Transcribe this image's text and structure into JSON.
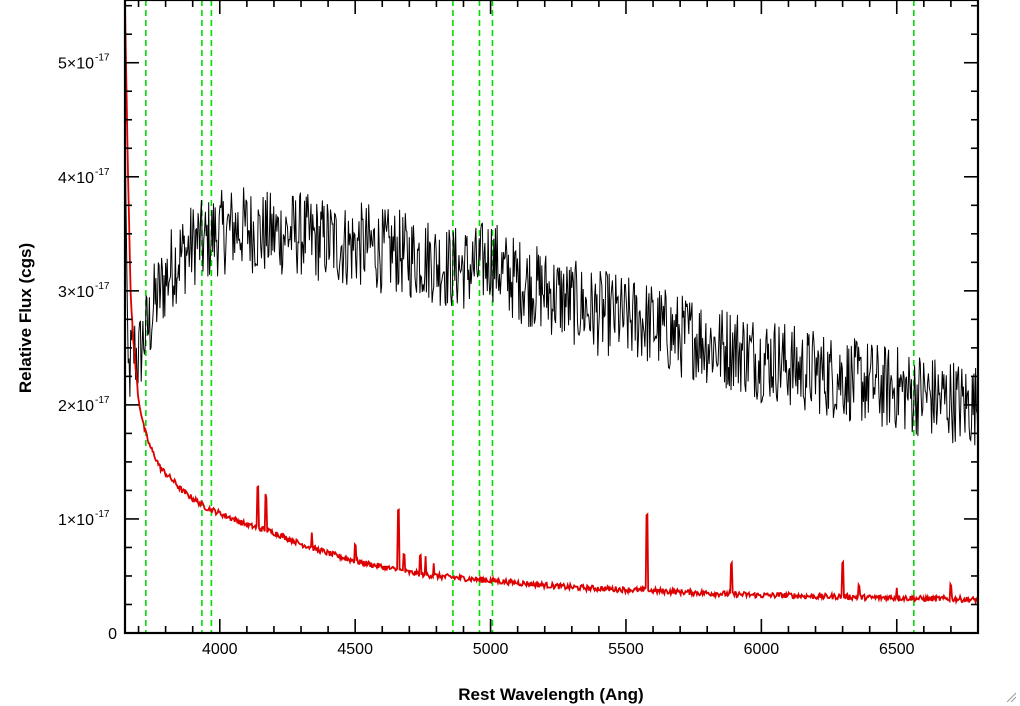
{
  "chart_data": {
    "type": "line",
    "title": "",
    "xlabel": "Rest Wavelength (Ang)",
    "ylabel": "Relative Flux (cgs)",
    "xlim": [
      3650,
      6800
    ],
    "ylim": [
      0,
      5.55e-17
    ],
    "x_ticks": [
      {
        "value": 4000,
        "label": "4000"
      },
      {
        "value": 4500,
        "label": "4500"
      },
      {
        "value": 5000,
        "label": "5000"
      },
      {
        "value": 5500,
        "label": "5500"
      },
      {
        "value": 6000,
        "label": "6000"
      },
      {
        "value": 6500,
        "label": "6500"
      }
    ],
    "y_ticks": [
      {
        "value": 0,
        "label": "0",
        "mantissa": "",
        "exponent": ""
      },
      {
        "value": 1e-17,
        "label": "1×10⁻¹⁷",
        "mantissa": "1×10",
        "exponent": "-17"
      },
      {
        "value": 2e-17,
        "label": "2×10⁻¹⁷",
        "mantissa": "2×10",
        "exponent": "-17"
      },
      {
        "value": 3e-17,
        "label": "3×10⁻¹⁷",
        "mantissa": "3×10",
        "exponent": "-17"
      },
      {
        "value": 4e-17,
        "label": "4×10⁻¹⁷",
        "mantissa": "4×10",
        "exponent": "-17"
      },
      {
        "value": 5e-17,
        "label": "5×10⁻¹⁷",
        "mantissa": "5×10",
        "exponent": "-17"
      }
    ],
    "reference_lines": {
      "color": "#00dd00",
      "style": "dashed",
      "x": [
        3727,
        3934,
        3969,
        4861,
        4959,
        5007,
        6563
      ]
    },
    "series": [
      {
        "color": "#000000",
        "x": [
          3650,
          3660,
          3680,
          3700,
          3720,
          3740,
          3760,
          3780,
          3800,
          3820,
          3850,
          3880,
          3900,
          3920,
          3940,
          3960,
          3980,
          4000,
          4050,
          4100,
          4150,
          4200,
          4250,
          4300,
          4350,
          4400,
          4450,
          4500,
          4550,
          4600,
          4650,
          4700,
          4750,
          4800,
          4850,
          4900,
          4950,
          5000,
          5050,
          5100,
          5150,
          5200,
          5250,
          5300,
          5350,
          5400,
          5450,
          5500,
          5550,
          5600,
          5650,
          5700,
          5750,
          5800,
          5850,
          5900,
          5950,
          6000,
          6050,
          6100,
          6150,
          6200,
          6250,
          6300,
          6350,
          6400,
          6450,
          6500,
          6550,
          6600,
          6650,
          6700,
          6750,
          6800
        ],
        "values": [
          4.8e-17,
          2.2e-17,
          2.5e-17,
          2.4e-17,
          2.6e-17,
          2.7e-17,
          2.9e-17,
          3e-17,
          3.1e-17,
          3.2e-17,
          3.3e-17,
          3.35e-17,
          3.4e-17,
          3.45e-17,
          3.4e-17,
          3.45e-17,
          3.5e-17,
          3.5e-17,
          3.55e-17,
          3.55e-17,
          3.5e-17,
          3.5e-17,
          3.5e-17,
          3.5e-17,
          3.45e-17,
          3.45e-17,
          3.4e-17,
          3.4e-17,
          3.4e-17,
          3.35e-17,
          3.35e-17,
          3.3e-17,
          3.3e-17,
          3.25e-17,
          3.2e-17,
          3.2e-17,
          3.2e-17,
          3.3e-17,
          3.15e-17,
          3.1e-17,
          3.05e-17,
          3e-17,
          2.95e-17,
          2.9e-17,
          2.85e-17,
          2.8e-17,
          2.8e-17,
          2.75e-17,
          2.75e-17,
          2.7e-17,
          2.65e-17,
          2.6e-17,
          2.6e-17,
          2.55e-17,
          2.5e-17,
          2.5e-17,
          2.45e-17,
          2.4e-17,
          2.4e-17,
          2.35e-17,
          2.3e-17,
          2.3e-17,
          2.25e-17,
          2.25e-17,
          2.2e-17,
          2.2e-17,
          2.15e-17,
          2.15e-17,
          2.1e-17,
          2.1e-17,
          2.05e-17,
          2.05e-17,
          2e-17,
          2e-17
        ]
      },
      {
        "color": "#dd0000",
        "x": [
          3650,
          3660,
          3670,
          3680,
          3690,
          3700,
          3720,
          3740,
          3760,
          3780,
          3800,
          3830,
          3860,
          3900,
          3950,
          4000,
          4100,
          4200,
          4300,
          4400,
          4500,
          4600,
          4700,
          4800,
          4900,
          5000,
          5100,
          5200,
          5300,
          5400,
          5500,
          5600,
          5700,
          5800,
          5900,
          6000,
          6100,
          6200,
          6300,
          6400,
          6500,
          6600,
          6700,
          6800
        ],
        "values": [
          5.5e-17,
          4.2e-17,
          3e-17,
          2.6e-17,
          2.3e-17,
          2.05e-17,
          1.8e-17,
          1.65e-17,
          1.55e-17,
          1.45e-17,
          1.4e-17,
          1.33e-17,
          1.25e-17,
          1.18e-17,
          1.1e-17,
          1.05e-17,
          9.5e-18,
          8.8e-18,
          7.8e-18,
          7e-18,
          6.3e-18,
          5.8e-18,
          5.3e-18,
          5e-18,
          4.8e-18,
          4.6e-18,
          4.4e-18,
          4.2e-18,
          4e-18,
          3.9e-18,
          3.8e-18,
          3.7e-18,
          3.6e-18,
          3.5e-18,
          3.4e-18,
          3.3e-18,
          3.3e-18,
          3.2e-18,
          3.2e-18,
          3.1e-18,
          3.1e-18,
          3e-18,
          3e-18,
          2.9e-18
        ],
        "spikes": [
          {
            "x": 4140,
            "height": 3.5e-18
          },
          {
            "x": 4170,
            "height": 3e-18
          },
          {
            "x": 4340,
            "height": 1.5e-18
          },
          {
            "x": 4500,
            "height": 1.5e-18
          },
          {
            "x": 4660,
            "height": 5.5e-18
          },
          {
            "x": 4680,
            "height": 1.5e-18
          },
          {
            "x": 4740,
            "height": 1.5e-18
          },
          {
            "x": 4760,
            "height": 1.5e-18
          },
          {
            "x": 4790,
            "height": 1.2e-18
          },
          {
            "x": 5577,
            "height": 6.8e-18
          },
          {
            "x": 5890,
            "height": 2.5e-18
          },
          {
            "x": 6300,
            "height": 3e-18
          },
          {
            "x": 6360,
            "height": 1e-18
          },
          {
            "x": 6500,
            "height": 1e-18
          },
          {
            "x": 6700,
            "height": 1.2e-18
          }
        ]
      }
    ]
  }
}
